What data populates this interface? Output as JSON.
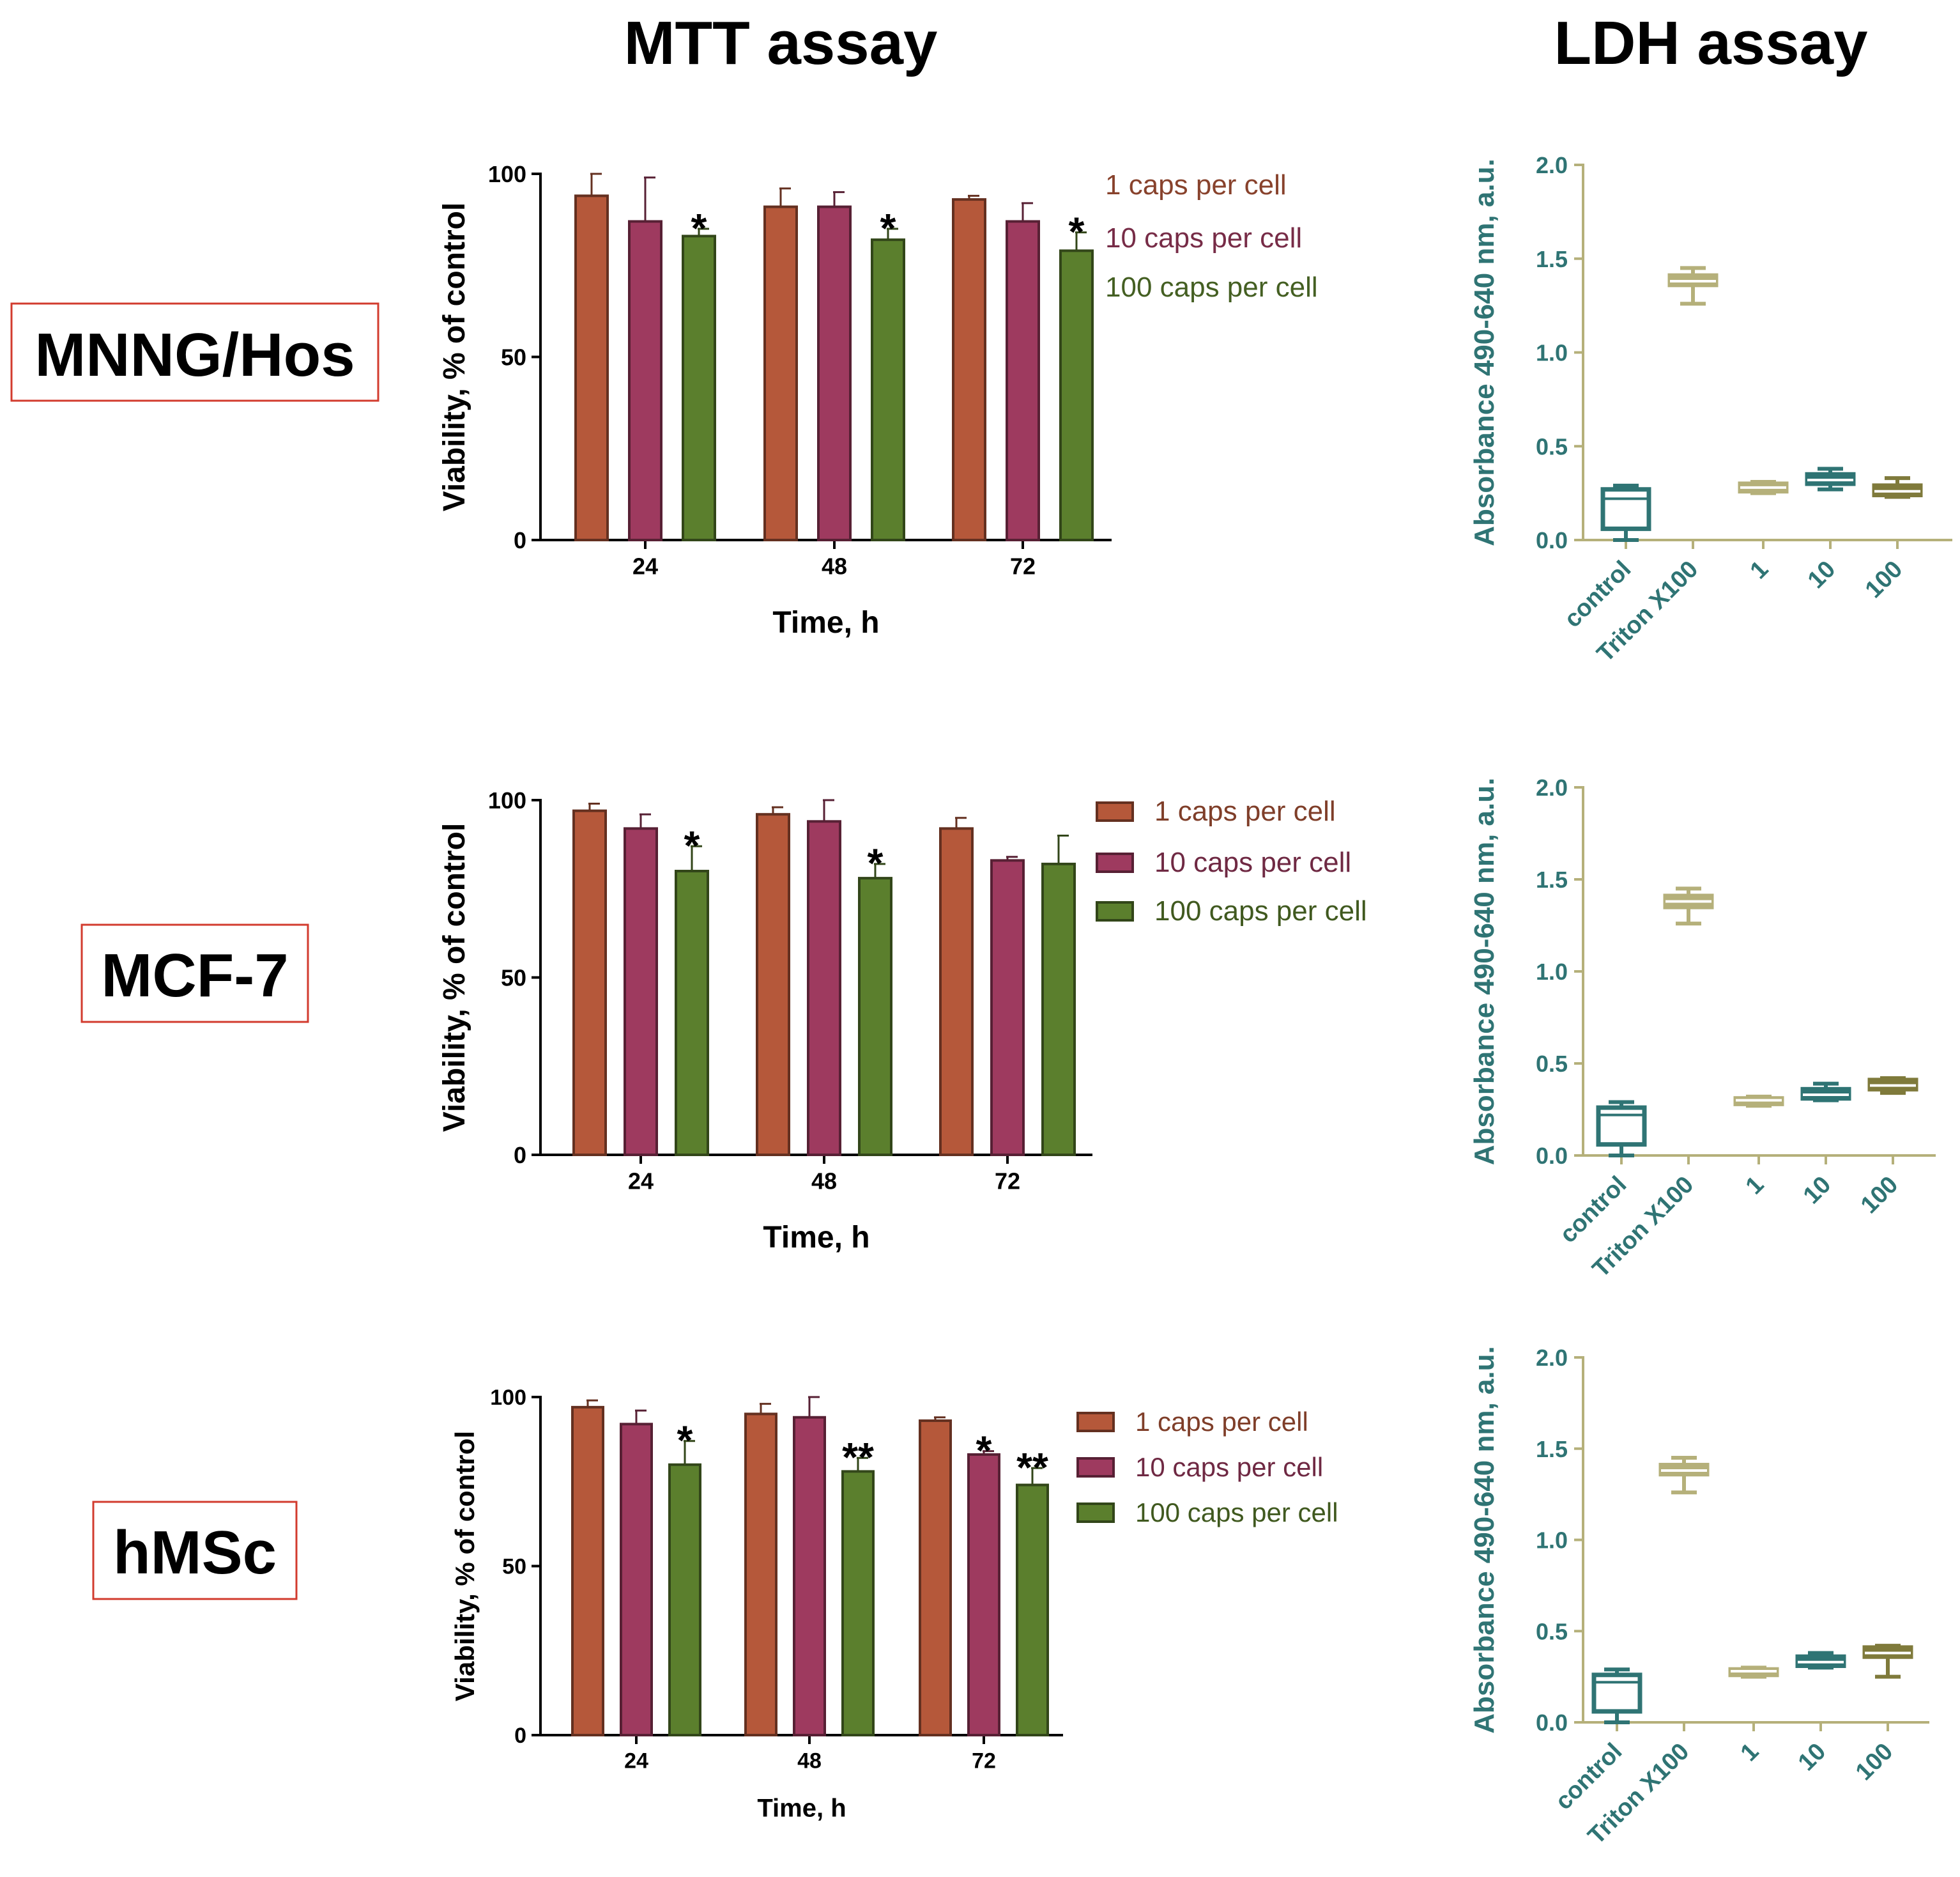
{
  "headings": {
    "mtt": "MTT assay",
    "ldh": "LDH assay"
  },
  "cell_lines": [
    "MNNG/Hos",
    "MCF-7",
    "hMSc"
  ],
  "colors": {
    "caps1": "#b5583a",
    "caps10": "#9e3a5f",
    "caps100": "#5b7f2d",
    "ldh_teal": "#2f7474",
    "ldh_olive": "#b5b07a",
    "ldh_darkolive": "#7f7a3b",
    "label_red": "#d23b2e",
    "axis": "#000000"
  },
  "chart_data": [
    {
      "type": "bar",
      "panel": "MTT",
      "cell_line": "MNNG/Hos",
      "categories": [
        "24",
        "48",
        "72"
      ],
      "xlabel": "Time, h",
      "ylabel": "Viability, % of control",
      "ylim": [
        0,
        100
      ],
      "yticks": [
        "0",
        "50",
        "100"
      ],
      "legend_style": "text",
      "series": [
        {
          "name": "1 caps per cell",
          "values": [
            94,
            91,
            93
          ],
          "errors": [
            6,
            5,
            1
          ]
        },
        {
          "name": "10 caps per cell",
          "values": [
            87,
            91,
            87
          ],
          "errors": [
            12,
            4,
            5
          ]
        },
        {
          "name": "100 caps per cell",
          "values": [
            83,
            82,
            79
          ],
          "errors": [
            2,
            3,
            5
          ]
        }
      ],
      "annotations": [
        [
          "",
          "",
          "*"
        ],
        [
          "",
          "",
          "*"
        ],
        [
          "",
          "",
          "*"
        ]
      ]
    },
    {
      "type": "bar",
      "panel": "MTT",
      "cell_line": "MCF-7",
      "categories": [
        "24",
        "48",
        "72"
      ],
      "xlabel": "Time, h",
      "ylabel": "Viability, % of control",
      "ylim": [
        0,
        100
      ],
      "yticks": [
        "0",
        "50",
        "100"
      ],
      "legend_style": "swatch",
      "series": [
        {
          "name": "1 caps per cell",
          "values": [
            97,
            96,
            92
          ],
          "errors": [
            2,
            2,
            3
          ]
        },
        {
          "name": "10 caps per cell",
          "values": [
            92,
            94,
            83
          ],
          "errors": [
            4,
            6,
            1
          ]
        },
        {
          "name": "100 caps per cell",
          "values": [
            80,
            78,
            82
          ],
          "errors": [
            7,
            4,
            8
          ]
        }
      ],
      "annotations": [
        [
          "",
          "",
          "*"
        ],
        [
          "",
          "",
          "*"
        ],
        [
          "",
          "",
          ""
        ]
      ]
    },
    {
      "type": "bar",
      "panel": "MTT",
      "cell_line": "hMSc",
      "categories": [
        "24",
        "48",
        "72"
      ],
      "xlabel": "Time, h",
      "ylabel": "Viability, % of control",
      "ylim": [
        0,
        100
      ],
      "yticks": [
        "0",
        "50",
        "100"
      ],
      "legend_style": "swatch",
      "series": [
        {
          "name": "1 caps per cell",
          "values": [
            97,
            95,
            93
          ],
          "errors": [
            2,
            3,
            1
          ]
        },
        {
          "name": "10 caps per cell",
          "values": [
            92,
            94,
            83
          ],
          "errors": [
            4,
            6,
            1
          ]
        },
        {
          "name": "100 caps per cell",
          "values": [
            80,
            78,
            74
          ],
          "errors": [
            7,
            4,
            5
          ]
        }
      ],
      "annotations": [
        [
          "",
          "",
          "*"
        ],
        [
          "",
          "",
          "**"
        ],
        [
          "",
          "*",
          "**"
        ]
      ]
    },
    {
      "type": "box",
      "panel": "LDH",
      "cell_line": "MNNG/Hos",
      "categories": [
        "control",
        "Triton X100",
        "1",
        "10",
        "100"
      ],
      "ylabel": "Absorbance 490-640 nm, a.u.",
      "ylim": [
        0,
        2.0
      ],
      "yticks": [
        "0.0",
        "0.5",
        "1.0",
        "1.5",
        "2.0"
      ],
      "boxes": [
        {
          "min": 0.0,
          "q1": 0.06,
          "median": 0.22,
          "q3": 0.27,
          "max": 0.29,
          "color": "teal"
        },
        {
          "min": 1.26,
          "q1": 1.36,
          "median": 1.38,
          "q3": 1.41,
          "max": 1.45,
          "color": "olive"
        },
        {
          "min": 0.25,
          "q1": 0.26,
          "median": 0.28,
          "q3": 0.3,
          "max": 0.31,
          "color": "olive"
        },
        {
          "min": 0.27,
          "q1": 0.3,
          "median": 0.32,
          "q3": 0.35,
          "max": 0.38,
          "color": "teal"
        },
        {
          "min": 0.23,
          "q1": 0.24,
          "median": 0.26,
          "q3": 0.29,
          "max": 0.33,
          "color": "darkolive"
        }
      ]
    },
    {
      "type": "box",
      "panel": "LDH",
      "cell_line": "MCF-7",
      "categories": [
        "control",
        "Triton X100",
        "1",
        "10",
        "100"
      ],
      "ylabel": "Absorbance 490-640 nm, a.u.",
      "ylim": [
        0,
        2.0
      ],
      "yticks": [
        "0.0",
        "0.5",
        "1.0",
        "1.5",
        "2.0"
      ],
      "boxes": [
        {
          "min": 0.0,
          "q1": 0.06,
          "median": 0.22,
          "q3": 0.26,
          "max": 0.29,
          "color": "teal"
        },
        {
          "min": 1.26,
          "q1": 1.35,
          "median": 1.38,
          "q3": 1.41,
          "max": 1.45,
          "color": "olive"
        },
        {
          "min": 0.27,
          "q1": 0.28,
          "median": 0.3,
          "q3": 0.31,
          "max": 0.32,
          "color": "olive"
        },
        {
          "min": 0.3,
          "q1": 0.31,
          "median": 0.33,
          "q3": 0.36,
          "max": 0.39,
          "color": "teal"
        },
        {
          "min": 0.34,
          "q1": 0.36,
          "median": 0.38,
          "q3": 0.41,
          "max": 0.42,
          "color": "darkolive"
        }
      ]
    },
    {
      "type": "box",
      "panel": "LDH",
      "cell_line": "hMSc",
      "categories": [
        "control",
        "Triton X100",
        "1",
        "10",
        "100"
      ],
      "ylabel": "Absorbance 490-640 nm, a.u.",
      "ylim": [
        0,
        2.0
      ],
      "yticks": [
        "0.0",
        "0.5",
        "1.0",
        "1.5",
        "2.0"
      ],
      "boxes": [
        {
          "min": 0.0,
          "q1": 0.06,
          "median": 0.22,
          "q3": 0.26,
          "max": 0.29,
          "color": "teal"
        },
        {
          "min": 1.26,
          "q1": 1.36,
          "median": 1.38,
          "q3": 1.41,
          "max": 1.45,
          "color": "olive"
        },
        {
          "min": 0.25,
          "q1": 0.26,
          "median": 0.28,
          "q3": 0.29,
          "max": 0.3,
          "color": "olive"
        },
        {
          "min": 0.3,
          "q1": 0.31,
          "median": 0.33,
          "q3": 0.36,
          "max": 0.38,
          "color": "teal"
        },
        {
          "min": 0.25,
          "q1": 0.36,
          "median": 0.38,
          "q3": 0.41,
          "max": 0.42,
          "color": "darkolive"
        }
      ]
    }
  ]
}
